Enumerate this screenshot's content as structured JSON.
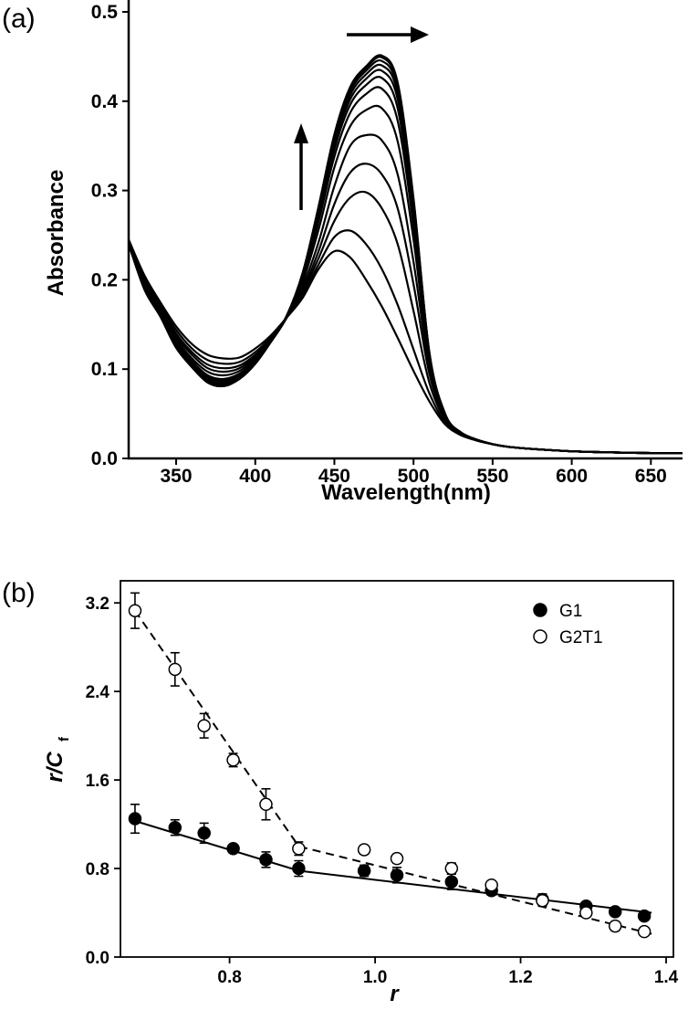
{
  "chart_data": [
    {
      "type": "line",
      "panel_label": "(a)",
      "xlabel": "Wavelength(nm)",
      "ylabel": "Absorbance",
      "xlim": [
        320,
        670
      ],
      "ylim": [
        0,
        0.5
      ],
      "xticks": [
        "350",
        "400",
        "450",
        "500",
        "550",
        "600",
        "650"
      ],
      "yticks": [
        "0.0",
        "0.1",
        "0.2",
        "0.3",
        "0.4",
        "0.5"
      ],
      "annotations": [
        "arrow-right-top",
        "arrow-up-left"
      ],
      "x": [
        320,
        330,
        340,
        350,
        360,
        370,
        380,
        390,
        400,
        410,
        420,
        430,
        440,
        450,
        460,
        470,
        480,
        490,
        500,
        510,
        520,
        530,
        540,
        550,
        560,
        580,
        600,
        620,
        650,
        670
      ],
      "series": [
        {
          "values": [
            0.245,
            0.205,
            0.175,
            0.148,
            0.128,
            0.116,
            0.112,
            0.113,
            0.123,
            0.138,
            0.158,
            0.18,
            0.212,
            0.232,
            0.225,
            0.2,
            0.17,
            0.135,
            0.098,
            0.064,
            0.038,
            0.026,
            0.02,
            0.016,
            0.013,
            0.01,
            0.008,
            0.007,
            0.006,
            0.006
          ]
        },
        {
          "values": [
            0.245,
            0.203,
            0.172,
            0.144,
            0.123,
            0.11,
            0.106,
            0.108,
            0.119,
            0.136,
            0.158,
            0.183,
            0.217,
            0.248,
            0.255,
            0.24,
            0.212,
            0.172,
            0.122,
            0.073,
            0.04,
            0.027,
            0.02,
            0.016,
            0.013,
            0.01,
            0.008,
            0.007,
            0.006,
            0.006
          ]
        },
        {
          "values": [
            0.244,
            0.201,
            0.17,
            0.14,
            0.119,
            0.105,
            0.101,
            0.104,
            0.116,
            0.134,
            0.158,
            0.186,
            0.224,
            0.266,
            0.292,
            0.298,
            0.28,
            0.24,
            0.165,
            0.085,
            0.043,
            0.028,
            0.021,
            0.016,
            0.013,
            0.01,
            0.008,
            0.007,
            0.006,
            0.006
          ]
        },
        {
          "values": [
            0.244,
            0.199,
            0.168,
            0.137,
            0.116,
            0.101,
            0.097,
            0.101,
            0.114,
            0.133,
            0.158,
            0.189,
            0.232,
            0.285,
            0.32,
            0.33,
            0.318,
            0.28,
            0.195,
            0.095,
            0.045,
            0.028,
            0.021,
            0.016,
            0.013,
            0.01,
            0.008,
            0.007,
            0.006,
            0.006
          ]
        },
        {
          "values": [
            0.243,
            0.197,
            0.166,
            0.134,
            0.112,
            0.097,
            0.093,
            0.098,
            0.112,
            0.132,
            0.158,
            0.193,
            0.242,
            0.305,
            0.35,
            0.362,
            0.356,
            0.318,
            0.22,
            0.102,
            0.046,
            0.029,
            0.021,
            0.016,
            0.013,
            0.01,
            0.008,
            0.007,
            0.006,
            0.006
          ]
        },
        {
          "values": [
            0.243,
            0.195,
            0.164,
            0.131,
            0.109,
            0.093,
            0.089,
            0.095,
            0.11,
            0.131,
            0.158,
            0.198,
            0.256,
            0.326,
            0.372,
            0.39,
            0.392,
            0.355,
            0.245,
            0.108,
            0.047,
            0.029,
            0.021,
            0.016,
            0.013,
            0.01,
            0.008,
            0.007,
            0.006,
            0.006
          ]
        },
        {
          "values": [
            0.242,
            0.194,
            0.163,
            0.129,
            0.107,
            0.091,
            0.087,
            0.093,
            0.109,
            0.131,
            0.159,
            0.201,
            0.265,
            0.338,
            0.387,
            0.408,
            0.414,
            0.378,
            0.26,
            0.112,
            0.048,
            0.029,
            0.021,
            0.016,
            0.013,
            0.01,
            0.008,
            0.007,
            0.006,
            0.006
          ]
        },
        {
          "values": [
            0.242,
            0.193,
            0.162,
            0.128,
            0.106,
            0.089,
            0.085,
            0.092,
            0.108,
            0.131,
            0.159,
            0.203,
            0.27,
            0.346,
            0.396,
            0.418,
            0.426,
            0.392,
            0.27,
            0.114,
            0.048,
            0.029,
            0.021,
            0.016,
            0.013,
            0.01,
            0.008,
            0.007,
            0.006,
            0.006
          ]
        },
        {
          "values": [
            0.241,
            0.192,
            0.161,
            0.127,
            0.105,
            0.088,
            0.084,
            0.091,
            0.107,
            0.131,
            0.159,
            0.205,
            0.274,
            0.352,
            0.402,
            0.425,
            0.434,
            0.402,
            0.277,
            0.116,
            0.049,
            0.029,
            0.021,
            0.016,
            0.013,
            0.01,
            0.008,
            0.007,
            0.006,
            0.006
          ]
        },
        {
          "values": [
            0.241,
            0.191,
            0.16,
            0.126,
            0.104,
            0.087,
            0.083,
            0.09,
            0.107,
            0.131,
            0.16,
            0.206,
            0.277,
            0.356,
            0.407,
            0.43,
            0.44,
            0.409,
            0.282,
            0.117,
            0.049,
            0.029,
            0.021,
            0.016,
            0.013,
            0.01,
            0.008,
            0.007,
            0.006,
            0.006
          ]
        },
        {
          "values": [
            0.24,
            0.19,
            0.16,
            0.125,
            0.103,
            0.086,
            0.082,
            0.09,
            0.106,
            0.131,
            0.16,
            0.207,
            0.279,
            0.359,
            0.411,
            0.434,
            0.445,
            0.414,
            0.286,
            0.118,
            0.049,
            0.029,
            0.021,
            0.016,
            0.013,
            0.01,
            0.008,
            0.007,
            0.006,
            0.006
          ]
        },
        {
          "values": [
            0.24,
            0.19,
            0.159,
            0.124,
            0.103,
            0.085,
            0.081,
            0.089,
            0.106,
            0.131,
            0.16,
            0.208,
            0.281,
            0.361,
            0.414,
            0.437,
            0.449,
            0.418,
            0.289,
            0.119,
            0.049,
            0.029,
            0.021,
            0.016,
            0.013,
            0.01,
            0.008,
            0.007,
            0.006,
            0.006
          ]
        },
        {
          "values": [
            0.24,
            0.189,
            0.159,
            0.124,
            0.102,
            0.085,
            0.081,
            0.089,
            0.106,
            0.131,
            0.16,
            0.208,
            0.282,
            0.363,
            0.416,
            0.439,
            0.451,
            0.421,
            0.291,
            0.119,
            0.05,
            0.029,
            0.021,
            0.016,
            0.013,
            0.01,
            0.008,
            0.007,
            0.006,
            0.006
          ]
        }
      ]
    },
    {
      "type": "scatter",
      "panel_label": "(b)",
      "xlabel": "r",
      "ylabel_main": "r/C",
      "ylabel_sub": "f",
      "xlim": [
        0.65,
        1.41
      ],
      "ylim": [
        0.0,
        3.4
      ],
      "xticks": [
        "0.8",
        "1.0",
        "1.2",
        "1.4"
      ],
      "yticks": [
        "0.0",
        "0.8",
        "1.6",
        "2.4",
        "3.2"
      ],
      "series": [
        {
          "name": "G1",
          "marker": "filled-circle",
          "points": [
            {
              "x": 0.67,
              "y": 1.25,
              "err": 0.13
            },
            {
              "x": 0.725,
              "y": 1.17,
              "err": 0.07
            },
            {
              "x": 0.765,
              "y": 1.12,
              "err": 0.09
            },
            {
              "x": 0.805,
              "y": 0.98,
              "err": 0.03
            },
            {
              "x": 0.85,
              "y": 0.88,
              "err": 0.07
            },
            {
              "x": 0.895,
              "y": 0.8,
              "err": 0.07
            },
            {
              "x": 0.985,
              "y": 0.78,
              "err": 0.05
            },
            {
              "x": 1.03,
              "y": 0.74,
              "err": 0.07
            },
            {
              "x": 1.105,
              "y": 0.68,
              "err": 0.07
            },
            {
              "x": 1.16,
              "y": 0.6,
              "err": 0.04
            },
            {
              "x": 1.23,
              "y": 0.52,
              "err": 0.05
            },
            {
              "x": 1.29,
              "y": 0.46,
              "err": 0.03
            },
            {
              "x": 1.33,
              "y": 0.41,
              "err": 0.02
            },
            {
              "x": 1.37,
              "y": 0.37,
              "err": 0.02
            }
          ],
          "fit": [
            [
              0.67,
              1.23
            ],
            [
              0.895,
              0.78
            ],
            [
              1.38,
              0.4
            ]
          ]
        },
        {
          "name": "G2T1",
          "marker": "open-circle",
          "points": [
            {
              "x": 0.67,
              "y": 3.13,
              "err": 0.16
            },
            {
              "x": 0.725,
              "y": 2.6,
              "err": 0.15
            },
            {
              "x": 0.765,
              "y": 2.09,
              "err": 0.11
            },
            {
              "x": 0.805,
              "y": 1.78,
              "err": 0.06
            },
            {
              "x": 0.85,
              "y": 1.38,
              "err": 0.14
            },
            {
              "x": 0.895,
              "y": 0.98,
              "err": 0.06
            },
            {
              "x": 0.985,
              "y": 0.97,
              "err": 0.04
            },
            {
              "x": 1.03,
              "y": 0.89,
              "err": 0.04
            },
            {
              "x": 1.105,
              "y": 0.8,
              "err": 0.05
            },
            {
              "x": 1.16,
              "y": 0.65,
              "err": 0.03
            },
            {
              "x": 1.23,
              "y": 0.51,
              "err": 0.05
            },
            {
              "x": 1.29,
              "y": 0.4,
              "err": 0.03
            },
            {
              "x": 1.33,
              "y": 0.28,
              "err": 0.04
            },
            {
              "x": 1.37,
              "y": 0.23,
              "err": 0.03
            }
          ],
          "fit": [
            [
              0.67,
              3.13
            ],
            [
              0.895,
              1.0
            ],
            [
              1.38,
              0.21
            ]
          ]
        }
      ],
      "legend": {
        "position": "top-right"
      }
    }
  ]
}
